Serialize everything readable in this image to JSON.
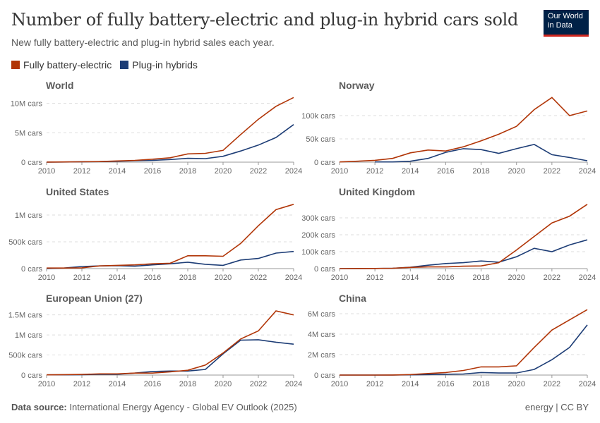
{
  "header": {
    "title": "Number of fully battery-electric and plug-in hybrid cars sold",
    "subtitle": "New fully battery-electric and plug-in hybrid sales each year.",
    "logo": "Our World in Data"
  },
  "legend": [
    {
      "label": "Fully battery-electric",
      "color": "#b13507"
    },
    {
      "label": "Plug-in hybrids",
      "color": "#1d3d76"
    }
  ],
  "footer": {
    "source_label": "Data source:",
    "source": "International Energy Agency - Global EV Outlook (2025)",
    "license": "energy | CC BY"
  },
  "chart_data": [
    {
      "type": "line",
      "title": "World",
      "x": [
        2010,
        2011,
        2012,
        2013,
        2014,
        2015,
        2016,
        2017,
        2018,
        2019,
        2020,
        2021,
        2022,
        2023,
        2024
      ],
      "xticks": [
        "2010",
        "2012",
        "2014",
        "2016",
        "2018",
        "2020",
        "2022",
        "2024"
      ],
      "ylim": [
        0,
        11400000
      ],
      "yticks": [
        {
          "v": 0,
          "label": "0 cars"
        },
        {
          "v": 5000000,
          "label": "5M cars"
        },
        {
          "v": 10000000,
          "label": "10M cars"
        }
      ],
      "series": [
        {
          "name": "Fully battery-electric",
          "values": [
            10000,
            40000,
            60000,
            100000,
            200000,
            300000,
            500000,
            750000,
            1400000,
            1500000,
            2000000,
            4700000,
            7300000,
            9500000,
            11000000
          ]
        },
        {
          "name": "Plug-in hybrids",
          "values": [
            10000,
            20000,
            70000,
            100000,
            150000,
            250000,
            300000,
            450000,
            650000,
            600000,
            1000000,
            1900000,
            2900000,
            4200000,
            6400000
          ]
        }
      ]
    },
    {
      "type": "line",
      "title": "Norway",
      "x": [
        2010,
        2011,
        2012,
        2013,
        2014,
        2015,
        2016,
        2017,
        2018,
        2019,
        2020,
        2021,
        2022,
        2023,
        2024
      ],
      "xticks": [
        "2010",
        "2012",
        "2014",
        "2016",
        "2018",
        "2020",
        "2022",
        "2024"
      ],
      "ylim": [
        0,
        144000
      ],
      "yticks": [
        {
          "v": 0,
          "label": "0 cars"
        },
        {
          "v": 50000,
          "label": "50k cars"
        },
        {
          "v": 100000,
          "label": "100k cars"
        }
      ],
      "series": [
        {
          "name": "Fully battery-electric",
          "values": [
            500,
            2000,
            4000,
            8000,
            20000,
            26000,
            24000,
            33000,
            46000,
            60000,
            77000,
            113000,
            139000,
            100000,
            110000
          ]
        },
        {
          "name": "Plug-in hybrids",
          "values": [
            null,
            null,
            500,
            500,
            2000,
            8000,
            21000,
            29000,
            27000,
            19000,
            29000,
            38000,
            16000,
            10000,
            3000
          ]
        }
      ]
    },
    {
      "type": "line",
      "title": "United States",
      "x": [
        2010,
        2011,
        2012,
        2013,
        2014,
        2015,
        2016,
        2017,
        2018,
        2019,
        2020,
        2021,
        2022,
        2023,
        2024
      ],
      "xticks": [
        "2010",
        "2012",
        "2014",
        "2016",
        "2018",
        "2020",
        "2022",
        "2024"
      ],
      "ylim": [
        0,
        1250000
      ],
      "yticks": [
        {
          "v": 0,
          "label": "0 cars"
        },
        {
          "v": 500000,
          "label": "500k cars"
        },
        {
          "v": 1000000,
          "label": "1M cars"
        }
      ],
      "series": [
        {
          "name": "Fully battery-electric",
          "values": [
            10000,
            10000,
            15000,
            50000,
            60000,
            70000,
            90000,
            100000,
            240000,
            240000,
            230000,
            470000,
            800000,
            1100000,
            1200000
          ]
        },
        {
          "name": "Plug-in hybrids",
          "values": [
            0,
            10000,
            40000,
            50000,
            55000,
            45000,
            70000,
            90000,
            120000,
            80000,
            60000,
            160000,
            190000,
            290000,
            320000
          ]
        }
      ]
    },
    {
      "type": "line",
      "title": "United Kingdom",
      "x": [
        2010,
        2011,
        2012,
        2013,
        2014,
        2015,
        2016,
        2017,
        2018,
        2019,
        2020,
        2021,
        2022,
        2023,
        2024
      ],
      "xticks": [
        "2010",
        "2012",
        "2014",
        "2016",
        "2018",
        "2020",
        "2022",
        "2024"
      ],
      "ylim": [
        0,
        396000
      ],
      "yticks": [
        {
          "v": 0,
          "label": "0 cars"
        },
        {
          "v": 100000,
          "label": "100k cars"
        },
        {
          "v": 200000,
          "label": "200k cars"
        },
        {
          "v": 300000,
          "label": "300k cars"
        }
      ],
      "series": [
        {
          "name": "Fully battery-electric",
          "values": [
            0,
            1000,
            1000,
            2000,
            7000,
            10000,
            10000,
            14000,
            16000,
            35000,
            110000,
            190000,
            270000,
            310000,
            380000
          ]
        },
        {
          "name": "Plug-in hybrids",
          "values": [
            0,
            0,
            1000,
            2000,
            8000,
            20000,
            30000,
            35000,
            45000,
            38000,
            70000,
            120000,
            100000,
            140000,
            170000
          ]
        }
      ]
    },
    {
      "type": "line",
      "title": "European Union (27)",
      "x": [
        2010,
        2011,
        2012,
        2013,
        2014,
        2015,
        2016,
        2017,
        2018,
        2019,
        2020,
        2021,
        2022,
        2023,
        2024
      ],
      "xticks": [
        "2010",
        "2012",
        "2014",
        "2016",
        "2018",
        "2020",
        "2022",
        "2024"
      ],
      "ylim": [
        0,
        1670000
      ],
      "yticks": [
        {
          "v": 0,
          "label": "0 cars"
        },
        {
          "v": 500000,
          "label": "500k cars"
        },
        {
          "v": 1000000,
          "label": "1M cars"
        },
        {
          "v": 1500000,
          "label": "1.5M cars"
        }
      ],
      "series": [
        {
          "name": "Fully battery-electric",
          "values": [
            5000,
            10000,
            15000,
            30000,
            30000,
            50000,
            50000,
            80000,
            120000,
            250000,
            550000,
            900000,
            1100000,
            1600000,
            1500000
          ]
        },
        {
          "name": "Plug-in hybrids",
          "values": [
            5000,
            5000,
            10000,
            20000,
            20000,
            50000,
            90000,
            100000,
            100000,
            140000,
            530000,
            870000,
            880000,
            820000,
            770000
          ]
        }
      ]
    },
    {
      "type": "line",
      "title": "China",
      "x": [
        2010,
        2011,
        2012,
        2013,
        2014,
        2015,
        2016,
        2017,
        2018,
        2019,
        2020,
        2021,
        2022,
        2023,
        2024
      ],
      "xticks": [
        "2010",
        "2012",
        "2014",
        "2016",
        "2018",
        "2020",
        "2022",
        "2024"
      ],
      "ylim": [
        0,
        6550000
      ],
      "yticks": [
        {
          "v": 0,
          "label": "0 cars"
        },
        {
          "v": 2000000,
          "label": "2M cars"
        },
        {
          "v": 4000000,
          "label": "4M cars"
        },
        {
          "v": 6000000,
          "label": "6M cars"
        }
      ],
      "series": [
        {
          "name": "Fully battery-electric",
          "values": [
            0,
            0,
            0,
            10000,
            50000,
            150000,
            250000,
            450000,
            800000,
            800000,
            900000,
            2700000,
            4400000,
            5400000,
            6400000
          ]
        },
        {
          "name": "Plug-in hybrids",
          "values": [
            0,
            0,
            0,
            0,
            20000,
            50000,
            80000,
            100000,
            250000,
            200000,
            200000,
            550000,
            1500000,
            2700000,
            4900000
          ]
        }
      ]
    }
  ]
}
